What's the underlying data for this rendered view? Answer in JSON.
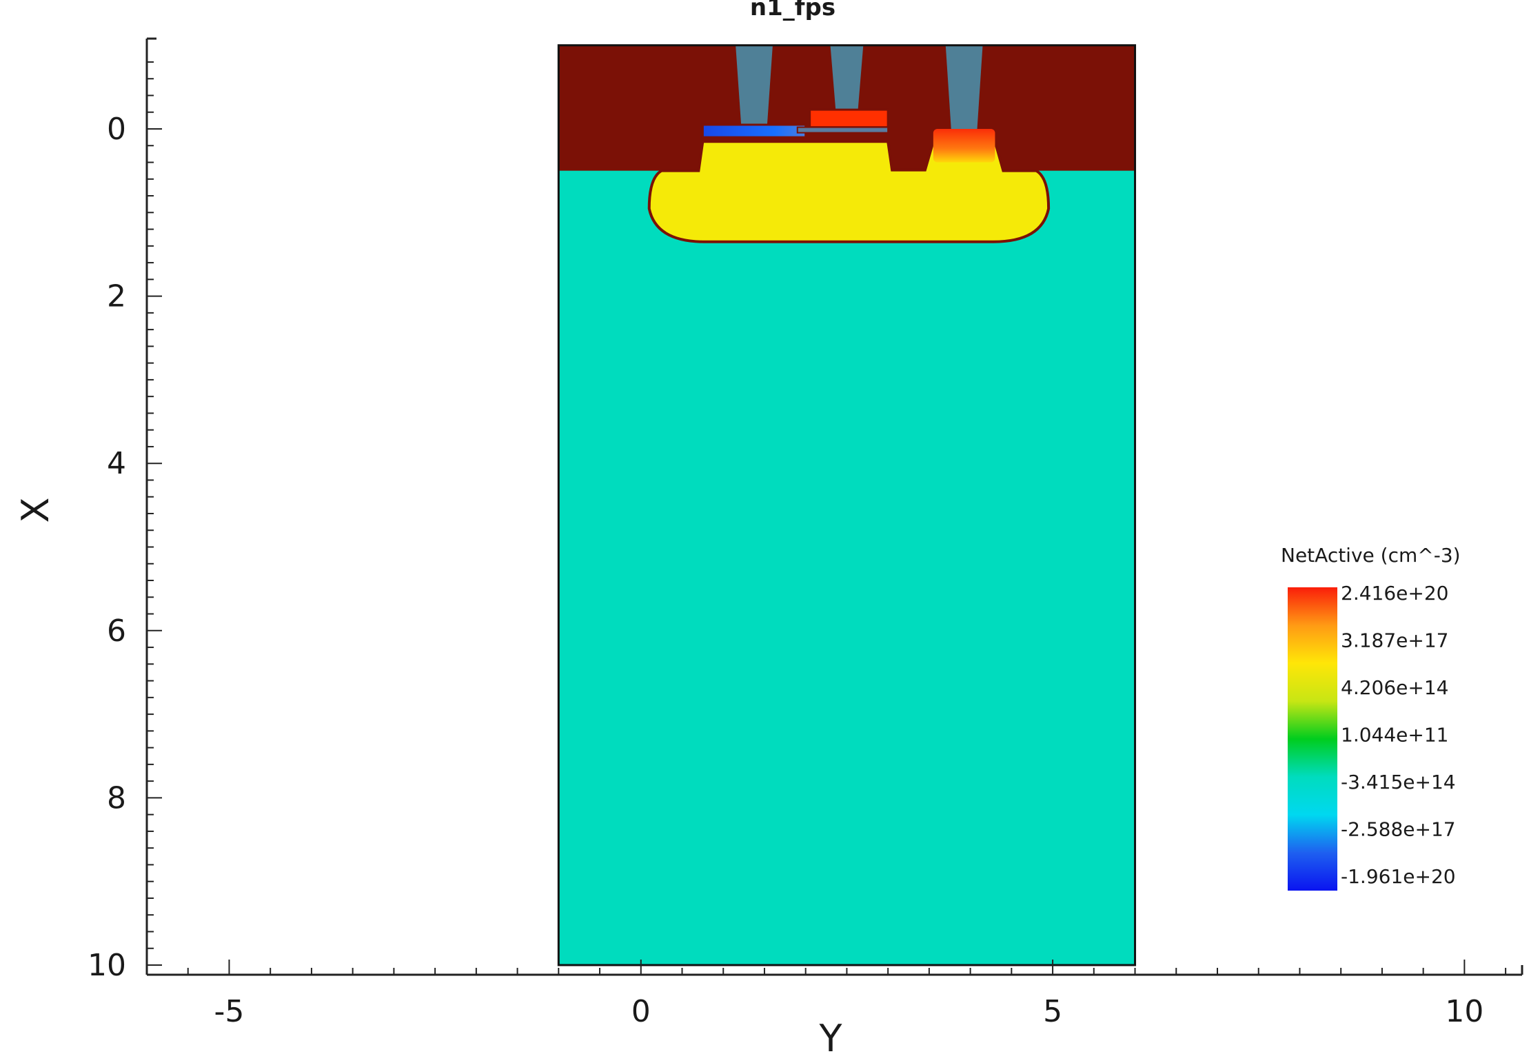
{
  "chart_data": {
    "type": "heatmap",
    "title": "n1_fps",
    "xlabel": "Y",
    "ylabel": "X",
    "xlim": [
      -6,
      10.7
    ],
    "ylim": [
      10.1,
      -1.1
    ],
    "x_ticks": [
      "-5",
      "0",
      "5",
      "10"
    ],
    "x_tick_values": [
      -5,
      0,
      5,
      10
    ],
    "y_ticks": [
      "0",
      "2",
      "4",
      "6",
      "8",
      "10"
    ],
    "y_tick_values": [
      0,
      2,
      4,
      6,
      8,
      10
    ],
    "grid": false,
    "device_extent": {
      "y": [
        -1,
        6
      ],
      "x": [
        -1,
        10
      ]
    },
    "regions": [
      {
        "name": "oxide",
        "color": "#7b1106",
        "y": [
          -1,
          6
        ],
        "x": [
          -1,
          0.5
        ]
      },
      {
        "name": "substrate",
        "color": "#00dcbe",
        "y": [
          -1,
          6
        ],
        "x": [
          0.5,
          10
        ]
      },
      {
        "name": "p-well",
        "color": "#f5ea08",
        "y": [
          0.1,
          4.95
        ],
        "x": [
          0.15,
          1.35
        ]
      },
      {
        "name": "contact-left",
        "color": "#4f8097",
        "y": [
          1.15,
          1.6
        ],
        "x": [
          -1,
          -0.05
        ]
      },
      {
        "name": "contact-middle",
        "color": "#4f8097",
        "y": [
          2.3,
          2.7
        ],
        "x": [
          -1,
          -0.2
        ]
      },
      {
        "name": "contact-right",
        "color": "#4f8097",
        "y": [
          3.7,
          4.15
        ],
        "x": [
          -1,
          0
        ]
      },
      {
        "name": "n-plus-gate",
        "color": "#ff3000",
        "y": [
          2.05,
          3.0
        ],
        "x": [
          -0.23,
          -0.02
        ]
      },
      {
        "name": "n-plus-source",
        "color": "#fe5a0a",
        "y": [
          3.55,
          4.3
        ],
        "x": [
          0.0,
          0.4
        ]
      },
      {
        "name": "p-plus-body",
        "color": "#1a4ff0",
        "y": [
          0.75,
          2.0
        ],
        "x": [
          -0.05,
          0.1
        ]
      }
    ],
    "legend": {
      "title": "NetActive (cm^-3)",
      "placement": "right",
      "labels": [
        "2.416e+20",
        "3.187e+17",
        "4.206e+14",
        "1.044e+11",
        "-3.415e+14",
        "-2.588e+17",
        "-1.961e+20"
      ],
      "colors": [
        "#fa1e0a",
        "#ff9a14",
        "#ffe608",
        "#c8e614",
        "#00cd1e",
        "#00dcbe",
        "#00d8f0",
        "#1e60f0",
        "#0a14f0"
      ]
    }
  },
  "header_text": "n1_fps"
}
